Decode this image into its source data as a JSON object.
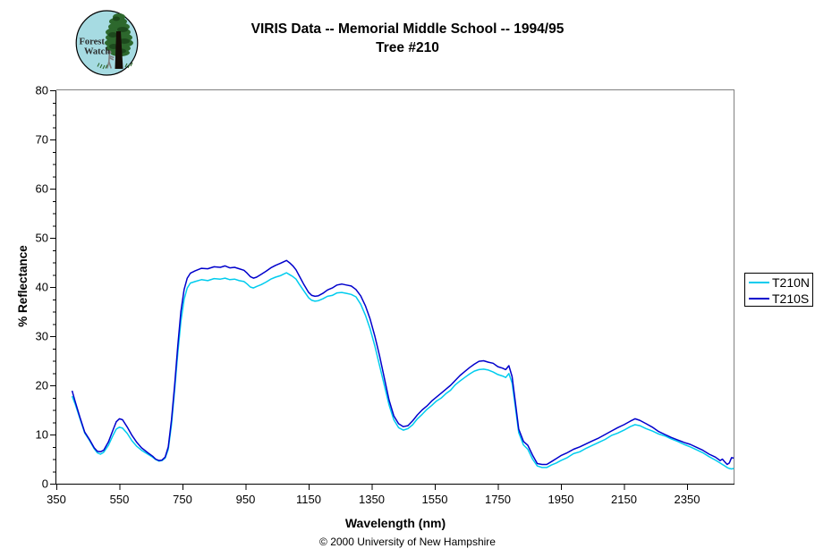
{
  "page": {
    "title_line1": "VIRIS Data -- Memorial Middle School -- 1994/95",
    "title_line2": "Tree #210",
    "footer": "© 2000 University of New Hampshire"
  },
  "logo": {
    "text_line1": "Forest",
    "text_line2": "Watch",
    "bg_color": "#a6dbe2",
    "tree_color": "#2d682d",
    "trunk_color": "#150d06"
  },
  "chart_data": {
    "type": "line",
    "title": "VIRIS Data -- Memorial Middle School -- 1994/95",
    "subtitle": "Tree #210",
    "xlabel": "Wavelength (nm)",
    "ylabel": "% Reflectance",
    "xlim": [
      350,
      2500
    ],
    "ylim": [
      0,
      80
    ],
    "x_ticks": [
      350,
      550,
      750,
      950,
      1150,
      1350,
      1550,
      1750,
      1950,
      2150,
      2350
    ],
    "y_ticks": [
      0,
      10,
      20,
      30,
      40,
      50,
      60,
      70,
      80
    ],
    "y_minor_step": 2.5,
    "grid": false,
    "legend_position": "right",
    "axis_color": "#000000",
    "frame_color": "#808080",
    "x": [
      400,
      410,
      425,
      440,
      455,
      470,
      480,
      490,
      500,
      515,
      530,
      540,
      550,
      560,
      575,
      590,
      605,
      620,
      640,
      655,
      665,
      675,
      685,
      695,
      705,
      715,
      725,
      735,
      745,
      755,
      765,
      775,
      790,
      810,
      830,
      850,
      870,
      885,
      900,
      915,
      930,
      945,
      955,
      965,
      975,
      985,
      1000,
      1015,
      1030,
      1045,
      1060,
      1070,
      1080,
      1090,
      1100,
      1110,
      1120,
      1135,
      1150,
      1160,
      1170,
      1180,
      1195,
      1210,
      1225,
      1240,
      1255,
      1270,
      1285,
      1300,
      1315,
      1330,
      1345,
      1360,
      1375,
      1390,
      1405,
      1420,
      1435,
      1450,
      1465,
      1480,
      1495,
      1510,
      1525,
      1540,
      1555,
      1570,
      1585,
      1600,
      1615,
      1630,
      1645,
      1660,
      1675,
      1690,
      1705,
      1720,
      1735,
      1750,
      1765,
      1775,
      1785,
      1795,
      1805,
      1816,
      1831,
      1845,
      1860,
      1875,
      1890,
      1905,
      1920,
      1935,
      1950,
      1970,
      1990,
      2010,
      2030,
      2050,
      2070,
      2090,
      2110,
      2130,
      2150,
      2170,
      2185,
      2200,
      2220,
      2240,
      2260,
      2280,
      2300,
      2320,
      2340,
      2360,
      2380,
      2400,
      2420,
      2440,
      2455,
      2462,
      2470,
      2477,
      2484,
      2491,
      2498
    ],
    "series": [
      {
        "name": "T210N",
        "color": "#00CCEE",
        "values": [
          17.8,
          16.1,
          13.2,
          10.3,
          8.8,
          7.1,
          6.3,
          6.0,
          6.4,
          7.8,
          9.9,
          11.1,
          11.5,
          11.3,
          10.2,
          8.7,
          7.6,
          6.8,
          6.0,
          5.4,
          4.9,
          4.6,
          4.7,
          5.2,
          7.0,
          12.0,
          19.0,
          26.5,
          33.0,
          37.5,
          39.8,
          40.8,
          41.1,
          41.5,
          41.3,
          41.7,
          41.6,
          41.8,
          41.5,
          41.6,
          41.3,
          41.1,
          40.6,
          40.0,
          39.8,
          40.1,
          40.5,
          41.0,
          41.6,
          42.0,
          42.3,
          42.6,
          42.9,
          42.5,
          42.1,
          41.6,
          40.6,
          39.2,
          37.8,
          37.3,
          37.1,
          37.2,
          37.6,
          38.1,
          38.3,
          38.8,
          38.9,
          38.7,
          38.5,
          38.0,
          36.5,
          34.3,
          31.5,
          28.0,
          24.0,
          20.0,
          16.0,
          13.0,
          11.4,
          10.9,
          11.2,
          12.0,
          13.2,
          14.1,
          15.1,
          15.9,
          16.8,
          17.4,
          18.3,
          19.0,
          20.1,
          20.9,
          21.6,
          22.3,
          22.9,
          23.2,
          23.3,
          23.1,
          22.7,
          22.2,
          21.9,
          21.6,
          22.4,
          20.5,
          15.8,
          10.4,
          7.9,
          7.0,
          5.0,
          3.6,
          3.3,
          3.3,
          3.8,
          4.2,
          4.7,
          5.3,
          6.1,
          6.5,
          7.2,
          7.8,
          8.4,
          9.0,
          9.8,
          10.3,
          10.9,
          11.6,
          12.0,
          11.8,
          11.2,
          10.7,
          10.1,
          9.7,
          9.1,
          8.6,
          8.0,
          7.5,
          6.9,
          6.3,
          5.5,
          4.8,
          4.2,
          3.9,
          3.6,
          3.3,
          3.1,
          3.0,
          3.1
        ]
      },
      {
        "name": "T210S",
        "color": "#0000CC",
        "values": [
          18.9,
          16.6,
          13.5,
          10.5,
          9.0,
          7.3,
          6.6,
          6.5,
          6.8,
          8.5,
          11.0,
          12.6,
          13.2,
          13.0,
          11.5,
          9.8,
          8.4,
          7.3,
          6.3,
          5.6,
          5.0,
          4.7,
          4.8,
          5.4,
          7.5,
          13.0,
          20.0,
          28.0,
          35.0,
          39.5,
          41.8,
          42.8,
          43.3,
          43.8,
          43.7,
          44.1,
          44.0,
          44.3,
          43.9,
          44.0,
          43.7,
          43.4,
          42.8,
          42.1,
          41.8,
          42.0,
          42.6,
          43.2,
          43.9,
          44.4,
          44.8,
          45.1,
          45.4,
          44.9,
          44.3,
          43.5,
          42.3,
          40.5,
          38.9,
          38.3,
          38.1,
          38.2,
          38.7,
          39.4,
          39.8,
          40.4,
          40.6,
          40.4,
          40.2,
          39.5,
          38.2,
          36.2,
          33.5,
          30.0,
          26.0,
          21.5,
          17.0,
          13.8,
          12.2,
          11.6,
          11.8,
          12.8,
          14.0,
          15.0,
          15.8,
          16.8,
          17.6,
          18.4,
          19.2,
          20.0,
          21.0,
          22.0,
          22.8,
          23.6,
          24.3,
          24.9,
          25.0,
          24.7,
          24.5,
          23.8,
          23.5,
          23.2,
          24.0,
          21.8,
          16.8,
          11.1,
          8.6,
          7.8,
          5.8,
          4.1,
          3.9,
          3.9,
          4.5,
          5.1,
          5.7,
          6.3,
          7.0,
          7.5,
          8.1,
          8.7,
          9.3,
          10.0,
          10.7,
          11.4,
          12.0,
          12.7,
          13.2,
          12.9,
          12.2,
          11.5,
          10.6,
          10.0,
          9.4,
          8.9,
          8.4,
          8.0,
          7.4,
          6.8,
          6.0,
          5.4,
          4.7,
          5.0,
          4.4,
          3.9,
          4.2,
          5.3,
          5.2
        ]
      }
    ]
  }
}
